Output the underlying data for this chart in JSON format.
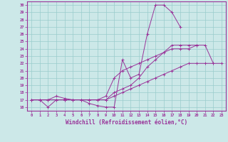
{
  "background_color": "#cce8e8",
  "grid_color": "#99cccc",
  "line_color": "#993399",
  "xlabel": "Windchill (Refroidissement éolien,°C)",
  "xlabel_fontsize": 5.5,
  "ylim": [
    15.5,
    30.5
  ],
  "xlim": [
    -0.5,
    23.5
  ],
  "series": [
    [
      17.0,
      17.0,
      16.0,
      17.0,
      17.0,
      17.0,
      17.0,
      16.5,
      16.2,
      16.0,
      16.0,
      22.5,
      20.0,
      20.5,
      26.0,
      30.0,
      30.0,
      29.0,
      27.0,
      null,
      null,
      null,
      null,
      null
    ],
    [
      17.0,
      17.0,
      17.0,
      17.5,
      17.2,
      17.0,
      17.0,
      17.0,
      17.0,
      17.0,
      18.0,
      18.5,
      19.0,
      20.0,
      21.5,
      22.5,
      23.5,
      24.5,
      24.5,
      24.5,
      24.5,
      null,
      null,
      null
    ],
    [
      17.0,
      17.0,
      17.0,
      17.0,
      17.0,
      17.0,
      17.0,
      17.0,
      17.0,
      17.5,
      20.0,
      21.0,
      21.5,
      22.0,
      22.5,
      23.0,
      23.5,
      24.0,
      24.0,
      24.0,
      24.5,
      24.5,
      22.0,
      null
    ],
    [
      17.0,
      17.0,
      17.0,
      17.0,
      17.0,
      17.0,
      17.0,
      17.0,
      17.0,
      17.0,
      17.5,
      18.0,
      18.5,
      19.0,
      19.5,
      20.0,
      20.5,
      21.0,
      21.5,
      22.0,
      22.0,
      22.0,
      22.0,
      22.0
    ]
  ],
  "figsize": [
    3.2,
    2.0
  ],
  "dpi": 100
}
